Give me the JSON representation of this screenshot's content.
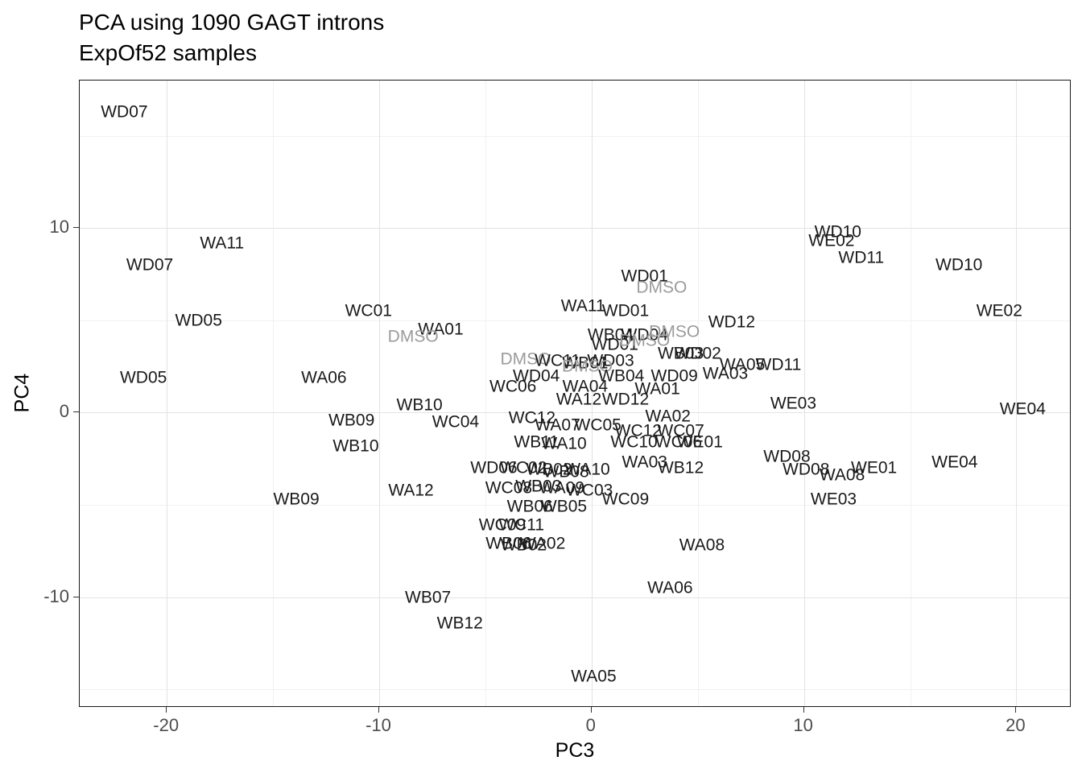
{
  "chart_data": {
    "type": "scatter",
    "title": "PCA using 1090 GAGT introns",
    "subtitle": "ExpOf52 samples",
    "xlabel": "PC3",
    "ylabel": "PC4",
    "xlim": [
      -24.1,
      22.6
    ],
    "ylim": [
      -16,
      18
    ],
    "x_ticks": [
      -20,
      -10,
      0,
      10,
      20
    ],
    "y_ticks": [
      -10,
      0,
      10
    ],
    "x_minor_ticks": [
      -15,
      -5,
      5,
      15
    ],
    "y_minor_ticks": [
      -15,
      -5,
      5,
      15
    ],
    "grid": true,
    "legend": "none",
    "point_style": "text-labels",
    "colors": {
      "label": "#1a1a1a",
      "dmso_label": "#9b9b9b",
      "grid_major": "#e3e3e3",
      "grid_minor": "#f1f1f1",
      "axis_text": "#4d4d4d",
      "panel_border": "#1a1a1a"
    },
    "points": [
      {
        "label": "WD07",
        "x": -22.0,
        "y": 16.3
      },
      {
        "label": "WA11",
        "x": -17.4,
        "y": 9.2
      },
      {
        "label": "WD07",
        "x": -20.8,
        "y": 8.0
      },
      {
        "label": "WD10",
        "x": 11.6,
        "y": 9.8
      },
      {
        "label": "WE02",
        "x": 11.3,
        "y": 9.3
      },
      {
        "label": "WD11",
        "x": 12.7,
        "y": 8.4
      },
      {
        "label": "WD10",
        "x": 17.3,
        "y": 8.0
      },
      {
        "label": "WD01",
        "x": 2.5,
        "y": 7.4
      },
      {
        "label": "DMSO",
        "x": 3.3,
        "y": 6.8
      },
      {
        "label": "WA11",
        "x": -0.4,
        "y": 5.8
      },
      {
        "label": "WD01",
        "x": 1.6,
        "y": 5.5
      },
      {
        "label": "WC01",
        "x": -10.5,
        "y": 5.5
      },
      {
        "label": "WE02",
        "x": 19.2,
        "y": 5.5
      },
      {
        "label": "WD05",
        "x": -18.5,
        "y": 5.0
      },
      {
        "label": "WD12",
        "x": 6.6,
        "y": 4.9
      },
      {
        "label": "WA01",
        "x": -7.1,
        "y": 4.5
      },
      {
        "label": "DMSO",
        "x": -8.4,
        "y": 4.1
      },
      {
        "label": "WB04",
        "x": 0.9,
        "y": 4.2
      },
      {
        "label": "WD04",
        "x": 2.5,
        "y": 4.2
      },
      {
        "label": "DMSO",
        "x": 3.9,
        "y": 4.4
      },
      {
        "label": "WD01",
        "x": 1.1,
        "y": 3.7
      },
      {
        "label": "DMSO",
        "x": 2.5,
        "y": 3.9
      },
      {
        "label": "WB03",
        "x": 4.2,
        "y": 3.2
      },
      {
        "label": "WD02",
        "x": 5.0,
        "y": 3.2
      },
      {
        "label": "DMSO",
        "x": -3.1,
        "y": 2.9
      },
      {
        "label": "WC11",
        "x": -1.6,
        "y": 2.8
      },
      {
        "label": "WB01",
        "x": -0.3,
        "y": 2.7
      },
      {
        "label": "WD03",
        "x": 0.9,
        "y": 2.8
      },
      {
        "label": "DMSO",
        "x": -0.2,
        "y": 2.5
      },
      {
        "label": "WA05",
        "x": 7.1,
        "y": 2.6
      },
      {
        "label": "WD11",
        "x": 8.8,
        "y": 2.6
      },
      {
        "label": "WD04",
        "x": -2.6,
        "y": 2.0
      },
      {
        "label": "WB04",
        "x": 1.4,
        "y": 2.0
      },
      {
        "label": "WD09",
        "x": 3.9,
        "y": 2.0
      },
      {
        "label": "WA03",
        "x": 6.3,
        "y": 2.1
      },
      {
        "label": "WD05",
        "x": -21.1,
        "y": 1.9
      },
      {
        "label": "WA06",
        "x": -12.6,
        "y": 1.9
      },
      {
        "label": "WC06",
        "x": -3.7,
        "y": 1.4
      },
      {
        "label": "WA04",
        "x": -0.3,
        "y": 1.4
      },
      {
        "label": "WA01",
        "x": 3.1,
        "y": 1.3
      },
      {
        "label": "WA12",
        "x": -0.6,
        "y": 0.7
      },
      {
        "label": "WD12",
        "x": 1.6,
        "y": 0.7
      },
      {
        "label": "WB10",
        "x": -8.1,
        "y": 0.4
      },
      {
        "label": "WE03",
        "x": 9.5,
        "y": 0.5
      },
      {
        "label": "WE04",
        "x": 20.3,
        "y": 0.2
      },
      {
        "label": "WB09",
        "x": -11.3,
        "y": -0.4
      },
      {
        "label": "WC12",
        "x": -2.8,
        "y": -0.3
      },
      {
        "label": "WA02",
        "x": 3.6,
        "y": -0.2
      },
      {
        "label": "WC04",
        "x": -6.4,
        "y": -0.5
      },
      {
        "label": "WA07",
        "x": -1.6,
        "y": -0.7
      },
      {
        "label": "WC05",
        "x": 0.3,
        "y": -0.7
      },
      {
        "label": "WC12",
        "x": 2.2,
        "y": -1.0
      },
      {
        "label": "WC07",
        "x": 4.2,
        "y": -1.0
      },
      {
        "label": "WB11",
        "x": -2.6,
        "y": -1.6
      },
      {
        "label": "WA10",
        "x": -1.3,
        "y": -1.7
      },
      {
        "label": "WC10",
        "x": 2.0,
        "y": -1.6
      },
      {
        "label": "WC06",
        "x": 4.1,
        "y": -1.6
      },
      {
        "label": "WE01",
        "x": 5.1,
        "y": -1.6
      },
      {
        "label": "WB10",
        "x": -11.1,
        "y": -1.8
      },
      {
        "label": "WD08",
        "x": 9.2,
        "y": -2.4
      },
      {
        "label": "WE04",
        "x": 17.1,
        "y": -2.7
      },
      {
        "label": "WA03",
        "x": 2.5,
        "y": -2.7
      },
      {
        "label": "WB12",
        "x": 4.2,
        "y": -3.0
      },
      {
        "label": "WD08",
        "x": 10.1,
        "y": -3.1
      },
      {
        "label": "WA08",
        "x": 11.8,
        "y": -3.4
      },
      {
        "label": "WE01",
        "x": 13.3,
        "y": -3.0
      },
      {
        "label": "WD06",
        "x": -4.6,
        "y": -3.0
      },
      {
        "label": "WC02",
        "x": -3.2,
        "y": -3.0
      },
      {
        "label": "WB02",
        "x": -2.0,
        "y": -3.1
      },
      {
        "label": "WB08",
        "x": -1.2,
        "y": -3.2
      },
      {
        "label": "WA10",
        "x": -0.2,
        "y": -3.1
      },
      {
        "label": "WC08",
        "x": -3.9,
        "y": -4.1
      },
      {
        "label": "WB03",
        "x": -2.5,
        "y": -4.0
      },
      {
        "label": "WA09",
        "x": -1.4,
        "y": -4.1
      },
      {
        "label": "WC03",
        "x": -0.1,
        "y": -4.2
      },
      {
        "label": "WA12",
        "x": -8.5,
        "y": -4.2
      },
      {
        "label": "WB09",
        "x": -13.9,
        "y": -4.7
      },
      {
        "label": "WC09",
        "x": 1.6,
        "y": -4.7
      },
      {
        "label": "WB06",
        "x": -2.9,
        "y": -5.1
      },
      {
        "label": "WB05",
        "x": -1.3,
        "y": -5.1
      },
      {
        "label": "WE03",
        "x": 11.4,
        "y": -4.7
      },
      {
        "label": "WC09",
        "x": -4.2,
        "y": -6.1
      },
      {
        "label": "WC11",
        "x": -3.3,
        "y": -6.1
      },
      {
        "label": "WB06",
        "x": -3.9,
        "y": -7.1
      },
      {
        "label": "WB02",
        "x": -3.2,
        "y": -7.2
      },
      {
        "label": "WA02",
        "x": -2.3,
        "y": -7.1
      },
      {
        "label": "WA08",
        "x": 5.2,
        "y": -7.2
      },
      {
        "label": "WA06",
        "x": 3.7,
        "y": -9.5
      },
      {
        "label": "WB07",
        "x": -7.7,
        "y": -10.0
      },
      {
        "label": "WB12",
        "x": -6.2,
        "y": -11.4
      },
      {
        "label": "WA05",
        "x": 0.1,
        "y": -14.3
      }
    ]
  }
}
